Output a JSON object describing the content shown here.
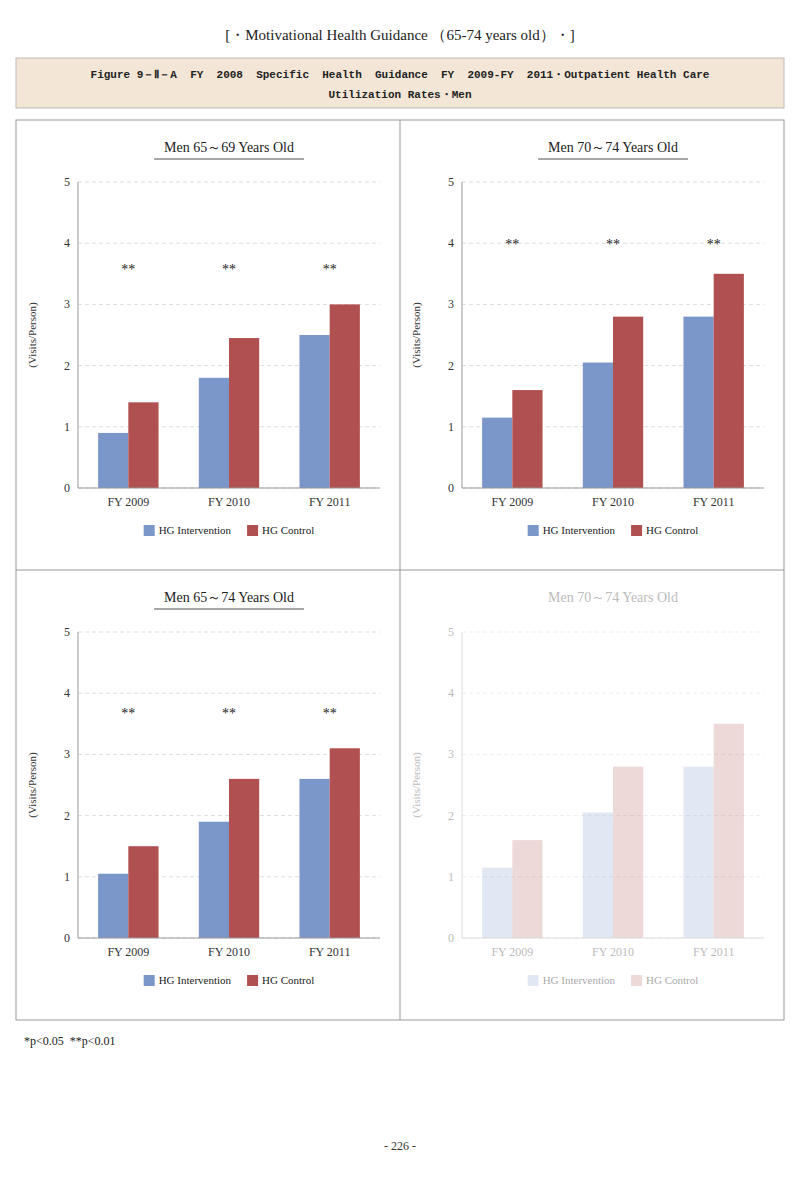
{
  "title": "[・Motivational Health Guidance （65-74 years old）・]",
  "subtitle": [
    "Figure 9－Ⅱ－A  FY  2008  Specific  Health  Guidance  FY  2009-FY  2011・Outpatient Health Care",
    "Utilization Rates・Men"
  ],
  "footnote": "*p<0.05  **p<0.01",
  "page_number": "- 226 -",
  "chart_data": [
    {
      "type": "bar",
      "title": "Men 65～69 Years Old",
      "y_label": "(Visits/Person)",
      "categories": [
        "FY 2009",
        "FY 2010",
        "FY 2011"
      ],
      "series": [
        {
          "name": "HG Intervention",
          "color": "#7B96C8",
          "values": [
            0.9,
            1.8,
            2.5
          ]
        },
        {
          "name": "HG Control",
          "color": "#B05050",
          "values": [
            1.4,
            2.45,
            3.0
          ]
        }
      ],
      "ylim": [
        0,
        5
      ],
      "yticks": [
        0,
        1,
        2,
        3,
        4,
        5
      ],
      "grid": true,
      "legend": "bottom",
      "annotations": [
        {
          "text": "**",
          "x": "FY 2009",
          "y": 3.5
        },
        {
          "text": "**",
          "x": "FY 2010",
          "y": 3.5
        },
        {
          "text": "**",
          "x": "FY 2011",
          "y": 3.5
        }
      ]
    },
    {
      "type": "bar",
      "title": "Men 70～74 Years Old",
      "y_label": "(Visits/Person)",
      "categories": [
        "FY 2009",
        "FY 2010",
        "FY 2011"
      ],
      "series": [
        {
          "name": "HG Intervention",
          "color": "#7B96C8",
          "values": [
            1.15,
            2.05,
            2.8
          ]
        },
        {
          "name": "HG Control",
          "color": "#B05050",
          "values": [
            1.6,
            2.8,
            3.5
          ]
        }
      ],
      "ylim": [
        0,
        5
      ],
      "yticks": [
        0,
        1,
        2,
        3,
        4,
        5
      ],
      "grid": true,
      "legend": "bottom",
      "annotations": [
        {
          "text": "**",
          "x": "FY 2009",
          "y": 3.9
        },
        {
          "text": "**",
          "x": "FY 2010",
          "y": 3.9
        },
        {
          "text": "**",
          "x": "FY 2011",
          "y": 3.9
        }
      ]
    },
    {
      "type": "bar",
      "title": "Men 65～74 Years Old",
      "y_label": "(Visits/Person)",
      "categories": [
        "FY 2009",
        "FY 2010",
        "FY 2011"
      ],
      "series": [
        {
          "name": "HG Intervention",
          "color": "#7B96C8",
          "values": [
            1.05,
            1.9,
            2.6
          ]
        },
        {
          "name": "HG Control",
          "color": "#B05050",
          "values": [
            1.5,
            2.6,
            3.1
          ]
        }
      ],
      "ylim": [
        0,
        5
      ],
      "yticks": [
        0,
        1,
        2,
        3,
        4,
        5
      ],
      "grid": true,
      "legend": "bottom",
      "annotations": [
        {
          "text": "**",
          "x": "FY 2009",
          "y": 3.6
        },
        {
          "text": "**",
          "x": "FY 2010",
          "y": 3.6
        },
        {
          "text": "**",
          "x": "FY 2011",
          "y": 3.6
        }
      ]
    },
    {
      "type": "bar",
      "title": "Men 70～74 Years Old",
      "y_label": "(Visits/Person)",
      "categories": [
        "FY 2009",
        "FY 2010",
        "FY 2011"
      ],
      "series": [
        {
          "name": "HG Intervention",
          "color": "#7B96C8",
          "values": [
            1.15,
            2.05,
            2.8
          ]
        },
        {
          "name": "HG Control",
          "color": "#B05050",
          "values": [
            1.6,
            2.8,
            3.5
          ]
        }
      ],
      "ylim": [
        0,
        5
      ],
      "yticks": [
        0,
        1,
        2,
        3,
        4,
        5
      ],
      "grid": true,
      "legend": "bottom"
    }
  ]
}
